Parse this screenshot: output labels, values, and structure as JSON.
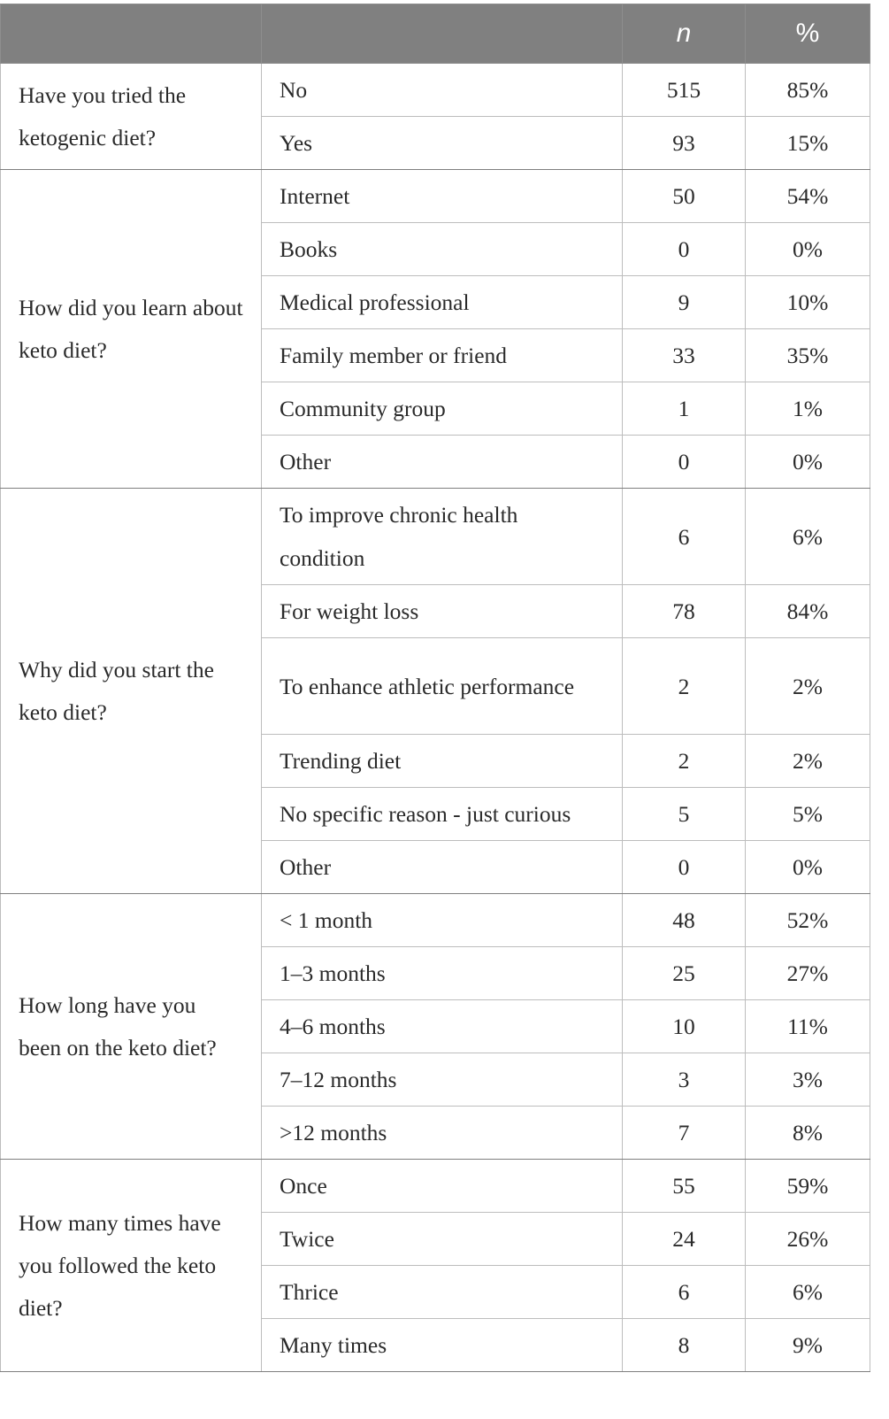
{
  "header": {
    "col_n": "n",
    "col_pct": "%"
  },
  "groups": [
    {
      "question": "Have you tried the ketogenic diet?",
      "rows": [
        {
          "label": "No",
          "n": "515",
          "pct": "85%"
        },
        {
          "label": "Yes",
          "n": "93",
          "pct": "15%"
        }
      ]
    },
    {
      "question": "How did you learn about keto diet?",
      "rows": [
        {
          "label": "Internet",
          "n": "50",
          "pct": "54%"
        },
        {
          "label": "Books",
          "n": "0",
          "pct": "0%"
        },
        {
          "label": "Medical professional",
          "n": "9",
          "pct": "10%"
        },
        {
          "label": "Family member or friend",
          "n": "33",
          "pct": "35%"
        },
        {
          "label": "Community group",
          "n": "1",
          "pct": "1%"
        },
        {
          "label": "Other",
          "n": "0",
          "pct": "0%"
        }
      ]
    },
    {
      "question": "Why did you start the keto diet?",
      "rows": [
        {
          "label": "To improve chronic health condition",
          "n": "6",
          "pct": "6%"
        },
        {
          "label": "For weight loss",
          "n": "78",
          "pct": "84%"
        },
        {
          "label": "To enhance athletic performance",
          "n": "2",
          "pct": "2%"
        },
        {
          "label": "Trending diet",
          "n": "2",
          "pct": "2%"
        },
        {
          "label": "No specific reason - just curious",
          "n": "5",
          "pct": "5%"
        },
        {
          "label": "Other",
          "n": "0",
          "pct": "0%"
        }
      ]
    },
    {
      "question": "How long have you been on the keto diet?",
      "rows": [
        {
          "label": "< 1 month",
          "n": "48",
          "pct": "52%"
        },
        {
          "label": "1–3 months",
          "n": "25",
          "pct": "27%"
        },
        {
          "label": "4–6 months",
          "n": "10",
          "pct": "11%"
        },
        {
          "label": "7–12 months",
          "n": "3",
          "pct": "3%"
        },
        {
          "label": ">12 months",
          "n": "7",
          "pct": "8%"
        }
      ]
    },
    {
      "question": "How many times have you followed the keto diet?",
      "rows": [
        {
          "label": "Once",
          "n": "55",
          "pct": "59%"
        },
        {
          "label": "Twice",
          "n": "24",
          "pct": "26%"
        },
        {
          "label": "Thrice",
          "n": "6",
          "pct": "6%"
        },
        {
          "label": "Many times",
          "n": "8",
          "pct": "9%"
        }
      ]
    }
  ]
}
